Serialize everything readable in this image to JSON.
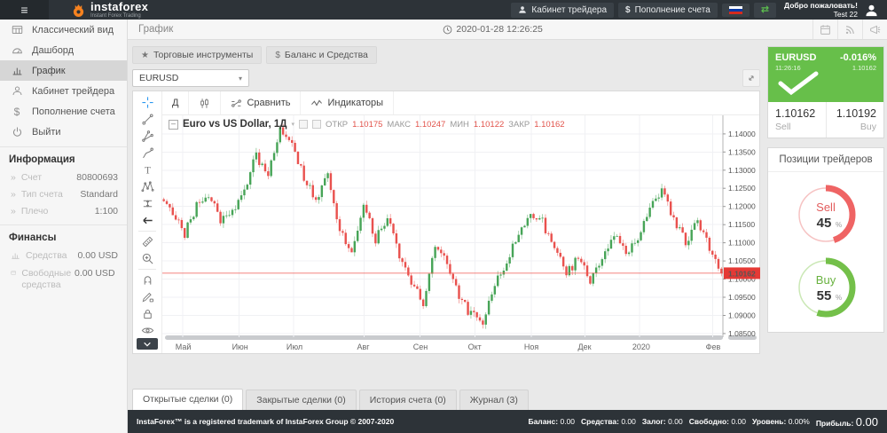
{
  "header": {
    "menu_glyph": "≡",
    "brand": "instaforex",
    "tagline": "Instant Forex Trading",
    "cabinet_button": "Кабинет трейдера",
    "deposit_glyph": "$",
    "deposit_button": "Пополнение счета",
    "swap_glyph": "⇄",
    "welcome_line1": "Добро пожаловать!",
    "welcome_line2": "Test 22"
  },
  "sidebar": {
    "row_arrow": "»",
    "items": [
      {
        "label": "Классический вид"
      },
      {
        "label": "Дашборд"
      },
      {
        "label": "График"
      },
      {
        "label": "Кабинет трейдера"
      },
      {
        "label": "Пополнение счета"
      },
      {
        "label": "Выйти"
      }
    ],
    "info_title": "Информация",
    "info_rows": [
      {
        "label": "Счет",
        "value": "80800693"
      },
      {
        "label": "Тип счета",
        "value": "Standard"
      },
      {
        "label": "Плечо",
        "value": "1:100"
      }
    ],
    "finance_title": "Финансы",
    "finance_rows": [
      {
        "label": "Средства",
        "value": "0.00 USD"
      },
      {
        "label": "Свободные средства",
        "value": "0.00 USD"
      }
    ]
  },
  "graph_header": {
    "title": "График",
    "datetime": "2020-01-28 12:26:25"
  },
  "action_buttons": {
    "instruments_glyph": "★",
    "instruments": "Торговые инструменты",
    "balance_glyph": "$",
    "balance": "Баланс и Средства"
  },
  "symbol_select": {
    "value": "EURUSD",
    "caret": "▾"
  },
  "chart_toolbar": {
    "timeframe": "Д",
    "compare": "Сравнить",
    "indicators": "Индикаторы"
  },
  "chart_data": {
    "type": "candlestick",
    "title": "Euro vs US Dollar, 1Д",
    "symbol": "EURUSD",
    "timeframe": "1Д",
    "legend": {
      "open_label": "ОТКР",
      "open": "1.10175",
      "high_label": "МАКС",
      "high": "1.10247",
      "low_label": "МИН",
      "low": "1.10122",
      "close_label": "ЗАКР",
      "close": "1.10162"
    },
    "y_ticks": [
      "1.14000",
      "1.13500",
      "1.13000",
      "1.12500",
      "1.12000",
      "1.11500",
      "1.11000",
      "1.10500",
      "1.10000",
      "1.09500",
      "1.09000",
      "1.08500"
    ],
    "y_range": [
      1.084,
      1.1451
    ],
    "x_labels": [
      {
        "label": "Май",
        "pos": 0.036
      },
      {
        "label": "Июн",
        "pos": 0.137
      },
      {
        "label": "Июл",
        "pos": 0.234
      },
      {
        "label": "Авг",
        "pos": 0.36
      },
      {
        "label": "Сен",
        "pos": 0.46
      },
      {
        "label": "Окт",
        "pos": 0.558
      },
      {
        "label": "Ноя",
        "pos": 0.658
      },
      {
        "label": "Дек",
        "pos": 0.754
      },
      {
        "label": "2020",
        "pos": 0.851
      },
      {
        "label": "Фев",
        "pos": 0.982
      }
    ],
    "current_price": 1.10162,
    "current_price_label": "1.10162",
    "up_color": "#47a457",
    "down_color": "#e9514e",
    "grid": true,
    "anchors": [
      1.122,
      1.1185,
      1.1125,
      1.12,
      1.123,
      1.1165,
      1.118,
      1.125,
      1.134,
      1.1285,
      1.1405,
      1.137,
      1.128,
      1.1225,
      1.1285,
      1.1135,
      1.1075,
      1.1205,
      1.111,
      1.1165,
      1.106,
      1.099,
      1.093,
      1.1085,
      1.104,
      1.0955,
      1.09,
      1.088,
      1.099,
      1.104,
      1.1135,
      1.117,
      1.1155,
      1.108,
      1.1015,
      1.106,
      1.0995,
      1.106,
      1.112,
      1.1065,
      1.112,
      1.1195,
      1.124,
      1.116,
      1.11,
      1.1155,
      1.1085,
      1.10162
    ],
    "candles_per_anchor": 4,
    "last_close": 1.10162
  },
  "quote_card": {
    "symbol": "EURUSD",
    "time": "11:26:16",
    "change_pct": "-0.016%",
    "price": "1.10162",
    "sell_price": "1.10162",
    "sell_label": "Sell",
    "buy_price": "1.10192",
    "buy_label": "Buy",
    "color": "#67bf4a"
  },
  "positions": {
    "title": "Позиции трейдеров",
    "sell_label": "Sell",
    "sell_pct": 45,
    "buy_label": "Buy",
    "buy_pct": 55,
    "percent_sign": "%",
    "sell_color": "#ef6464",
    "sell_ring": "#f6c3c3",
    "buy_color": "#74c04a",
    "buy_ring": "#cbe8b6"
  },
  "tabs": [
    {
      "label": "Открытые сделки (0)",
      "active": true
    },
    {
      "label": "Закрытые сделки (0)",
      "active": false
    },
    {
      "label": "История счета (0)",
      "active": false
    },
    {
      "label": "Журнал (3)",
      "active": false
    }
  ],
  "status_bar": {
    "copyright": "InstaForex™ is a registered trademark of InstaForex Group © 2007-2020",
    "items": [
      {
        "label": "Баланс:",
        "value": "0.00"
      },
      {
        "label": "Средства:",
        "value": "0.00"
      },
      {
        "label": "Залог:",
        "value": "0.00"
      },
      {
        "label": "Свободно:",
        "value": "0.00"
      },
      {
        "label": "Уровень:",
        "value": "0.00%"
      },
      {
        "label": "Прибыль:",
        "value": "0.00"
      }
    ]
  }
}
